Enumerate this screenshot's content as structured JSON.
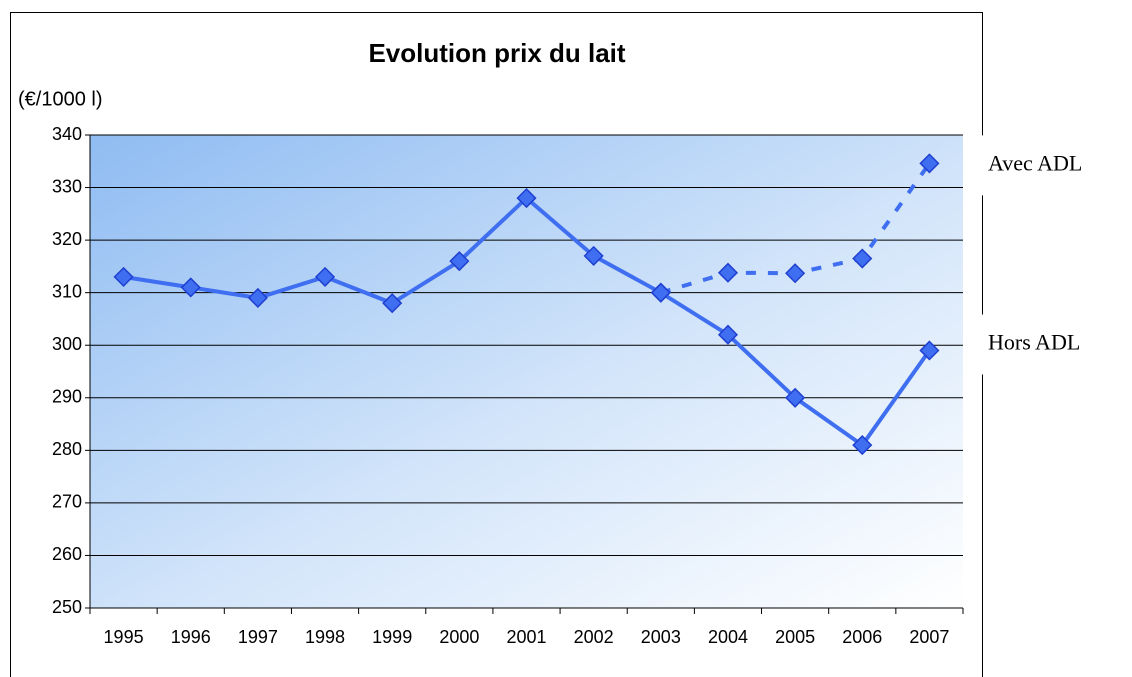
{
  "chart_data": {
    "type": "line",
    "title": "Evolution prix du lait",
    "y_label": "(€/1000 l)",
    "categories": [
      "1995",
      "1996",
      "1997",
      "1998",
      "1999",
      "2000",
      "2001",
      "2002",
      "2003",
      "2004",
      "2005",
      "2006",
      "2007"
    ],
    "series": [
      {
        "name": "Hors ADL",
        "color": "#3f6ff0",
        "line_style": "solid",
        "values": [
          313,
          311,
          309,
          313,
          308,
          316,
          328,
          317,
          310,
          302,
          290,
          281,
          299
        ]
      },
      {
        "name": "Avec ADL",
        "color": "#3f6ff0",
        "line_style": "dashed",
        "values": [
          null,
          null,
          null,
          null,
          null,
          null,
          null,
          null,
          310,
          313.8,
          313.7,
          316.5,
          334.6
        ]
      }
    ],
    "ylim": [
      250,
      340
    ],
    "yticks": [
      250,
      260,
      270,
      280,
      290,
      300,
      310,
      320,
      330,
      340
    ],
    "grid": true
  }
}
